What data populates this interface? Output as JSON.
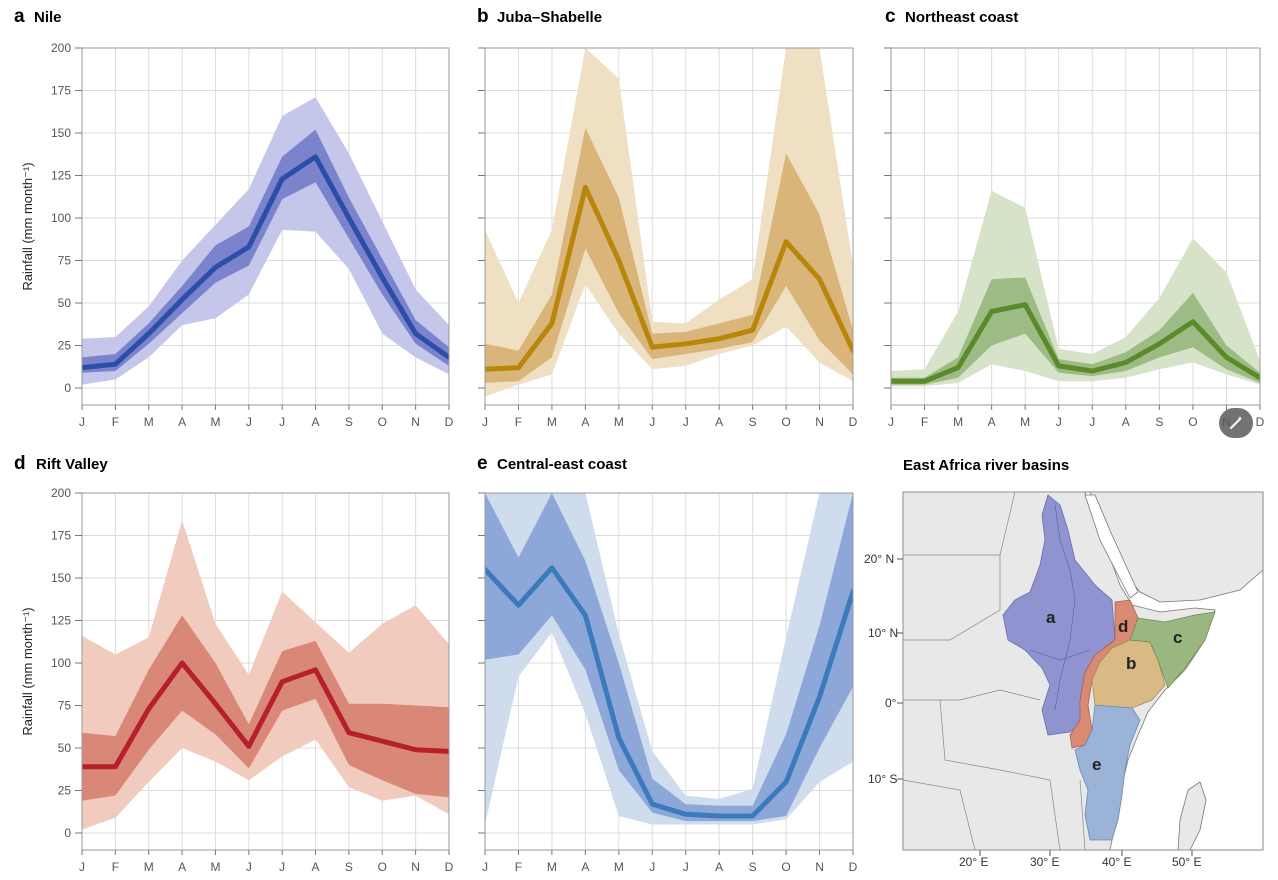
{
  "months": [
    "J",
    "F",
    "M",
    "A",
    "M",
    "J",
    "J",
    "A",
    "S",
    "O",
    "N",
    "D"
  ],
  "yticks": [
    0,
    25,
    50,
    75,
    100,
    125,
    150,
    175,
    200
  ],
  "ylabel": "Rainfall (mm month⁻¹)",
  "chart_data": [
    {
      "id": "a",
      "letter": "a",
      "title": "Nile",
      "type": "line",
      "color": "#2b4ea8",
      "band_inner": "#7b83cc",
      "band_outer": "#c4c7ea",
      "x": [
        "J",
        "F",
        "M",
        "A",
        "M",
        "J",
        "J",
        "A",
        "S",
        "O",
        "N",
        "D"
      ],
      "ylim": [
        0,
        200
      ],
      "series": [
        {
          "values": [
            12,
            14,
            32,
            52,
            71,
            83,
            123,
            136,
            100,
            65,
            32,
            18
          ]
        }
      ],
      "inner_range": {
        "lower": [
          9,
          10,
          26,
          44,
          62,
          72,
          111,
          121,
          88,
          55,
          26,
          13
        ],
        "upper": [
          18,
          20,
          38,
          60,
          84,
          95,
          136,
          152,
          112,
          76,
          40,
          24
        ]
      },
      "outer_range": {
        "lower": [
          2,
          5,
          18,
          37,
          41,
          55,
          93,
          92,
          70,
          32,
          18,
          8
        ],
        "upper": [
          29,
          30,
          48,
          75,
          96,
          117,
          160,
          171,
          138,
          98,
          58,
          37
        ]
      }
    },
    {
      "id": "b",
      "letter": "b",
      "title": "Juba–Shabelle",
      "type": "line",
      "color": "#b8860b",
      "band_inner": "#d9b57a",
      "band_outer": "#efe0c3",
      "x": [
        "J",
        "F",
        "M",
        "A",
        "M",
        "J",
        "J",
        "A",
        "S",
        "O",
        "N",
        "D"
      ],
      "ylim": [
        0,
        200
      ],
      "series": [
        {
          "values": [
            11,
            12,
            38,
            118,
            75,
            24,
            26,
            29,
            34,
            86,
            64,
            22
          ]
        }
      ],
      "inner_range": {
        "lower": [
          3,
          4,
          18,
          82,
          44,
          17,
          20,
          23,
          27,
          60,
          28,
          8
        ],
        "upper": [
          26,
          22,
          55,
          153,
          112,
          32,
          33,
          38,
          43,
          138,
          102,
          34
        ]
      },
      "outer_range": {
        "lower": [
          -5,
          2,
          8,
          61,
          32,
          11,
          13,
          20,
          25,
          36,
          15,
          4
        ],
        "upper": [
          93,
          50,
          93,
          200,
          182,
          39,
          38,
          52,
          64,
          200,
          200,
          72
        ]
      }
    },
    {
      "id": "c",
      "letter": "c",
      "title": "Northeast coast",
      "type": "line",
      "color": "#5b8a2a",
      "band_inner": "#9dbb85",
      "band_outer": "#d6e3c9",
      "x": [
        "J",
        "F",
        "M",
        "A",
        "M",
        "J",
        "J",
        "A",
        "S",
        "O",
        "N",
        "D"
      ],
      "ylim": [
        0,
        200
      ],
      "series": [
        {
          "values": [
            4,
            4,
            12,
            45,
            49,
            13,
            10,
            15,
            26,
            39,
            18,
            6
          ]
        }
      ],
      "inner_range": {
        "lower": [
          2,
          2,
          6,
          25,
          32,
          9,
          7,
          10,
          18,
          24,
          11,
          3
        ],
        "upper": [
          6,
          6,
          18,
          64,
          65,
          17,
          14,
          21,
          34,
          56,
          25,
          9
        ]
      },
      "outer_range": {
        "lower": [
          1,
          1,
          3,
          14,
          10,
          4,
          4,
          6,
          11,
          15,
          8,
          2
        ],
        "upper": [
          10,
          11,
          45,
          116,
          106,
          23,
          20,
          30,
          53,
          88,
          68,
          16
        ]
      }
    },
    {
      "id": "d",
      "letter": "d",
      "title": "Rift Valley",
      "type": "line",
      "color": "#b5202a",
      "band_inner": "#d98878",
      "band_outer": "#f1cbbe",
      "x": [
        "J",
        "F",
        "M",
        "A",
        "M",
        "J",
        "J",
        "A",
        "S",
        "O",
        "N",
        "D"
      ],
      "ylim": [
        0,
        200
      ],
      "series": [
        {
          "values": [
            39,
            39,
            73,
            100,
            76,
            51,
            89,
            96,
            59,
            54,
            49,
            48
          ]
        }
      ],
      "inner_range": {
        "lower": [
          19,
          22,
          49,
          72,
          58,
          38,
          72,
          79,
          40,
          31,
          23,
          21
        ],
        "upper": [
          59,
          57,
          96,
          128,
          100,
          64,
          107,
          113,
          76,
          76,
          75,
          74
        ]
      },
      "outer_range": {
        "lower": [
          2,
          9,
          30,
          50,
          42,
          31,
          45,
          55,
          27,
          19,
          22,
          11
        ],
        "upper": [
          116,
          105,
          115,
          184,
          123,
          93,
          142,
          124,
          106,
          123,
          134,
          111
        ]
      }
    },
    {
      "id": "e",
      "letter": "e",
      "title": "Central-east coast",
      "type": "line",
      "color": "#3b7bbd",
      "band_inner": "#8da8d8",
      "band_outer": "#cfdcee",
      "x": [
        "J",
        "F",
        "M",
        "A",
        "M",
        "J",
        "J",
        "A",
        "S",
        "O",
        "N",
        "D"
      ],
      "ylim": [
        0,
        200
      ],
      "series": [
        {
          "values": [
            155,
            134,
            156,
            128,
            56,
            17,
            11,
            10,
            10,
            30,
            80,
            142
          ]
        }
      ],
      "inner_range": {
        "lower": [
          102,
          105,
          128,
          96,
          37,
          12,
          7,
          7,
          7,
          10,
          50,
          86
        ],
        "upper": [
          200,
          162,
          200,
          160,
          100,
          32,
          17,
          16,
          16,
          58,
          122,
          200
        ]
      },
      "outer_range": {
        "lower": [
          5,
          92,
          118,
          70,
          10,
          5,
          5,
          5,
          5,
          8,
          30,
          42
        ],
        "upper": [
          200,
          200,
          200,
          200,
          117,
          48,
          22,
          20,
          26,
          115,
          200,
          200
        ]
      }
    }
  ],
  "map": {
    "title": "East Africa river basins",
    "lat_labels": [
      "20° N",
      "10° N",
      "0°",
      "10° S"
    ],
    "lon_labels": [
      "20° E",
      "30° E",
      "40° E",
      "50° E"
    ],
    "basins": [
      {
        "letter": "a",
        "color": "#8f93d0"
      },
      {
        "letter": "b",
        "color": "#d9ba85"
      },
      {
        "letter": "c",
        "color": "#9ab77f"
      },
      {
        "letter": "d",
        "color": "#d88a72"
      },
      {
        "letter": "e",
        "color": "#9bb3d6"
      }
    ],
    "land_color": "#e8e8e8",
    "sea_color": "#ffffff"
  },
  "overlay": {
    "icon": "magic-wand-icon"
  }
}
